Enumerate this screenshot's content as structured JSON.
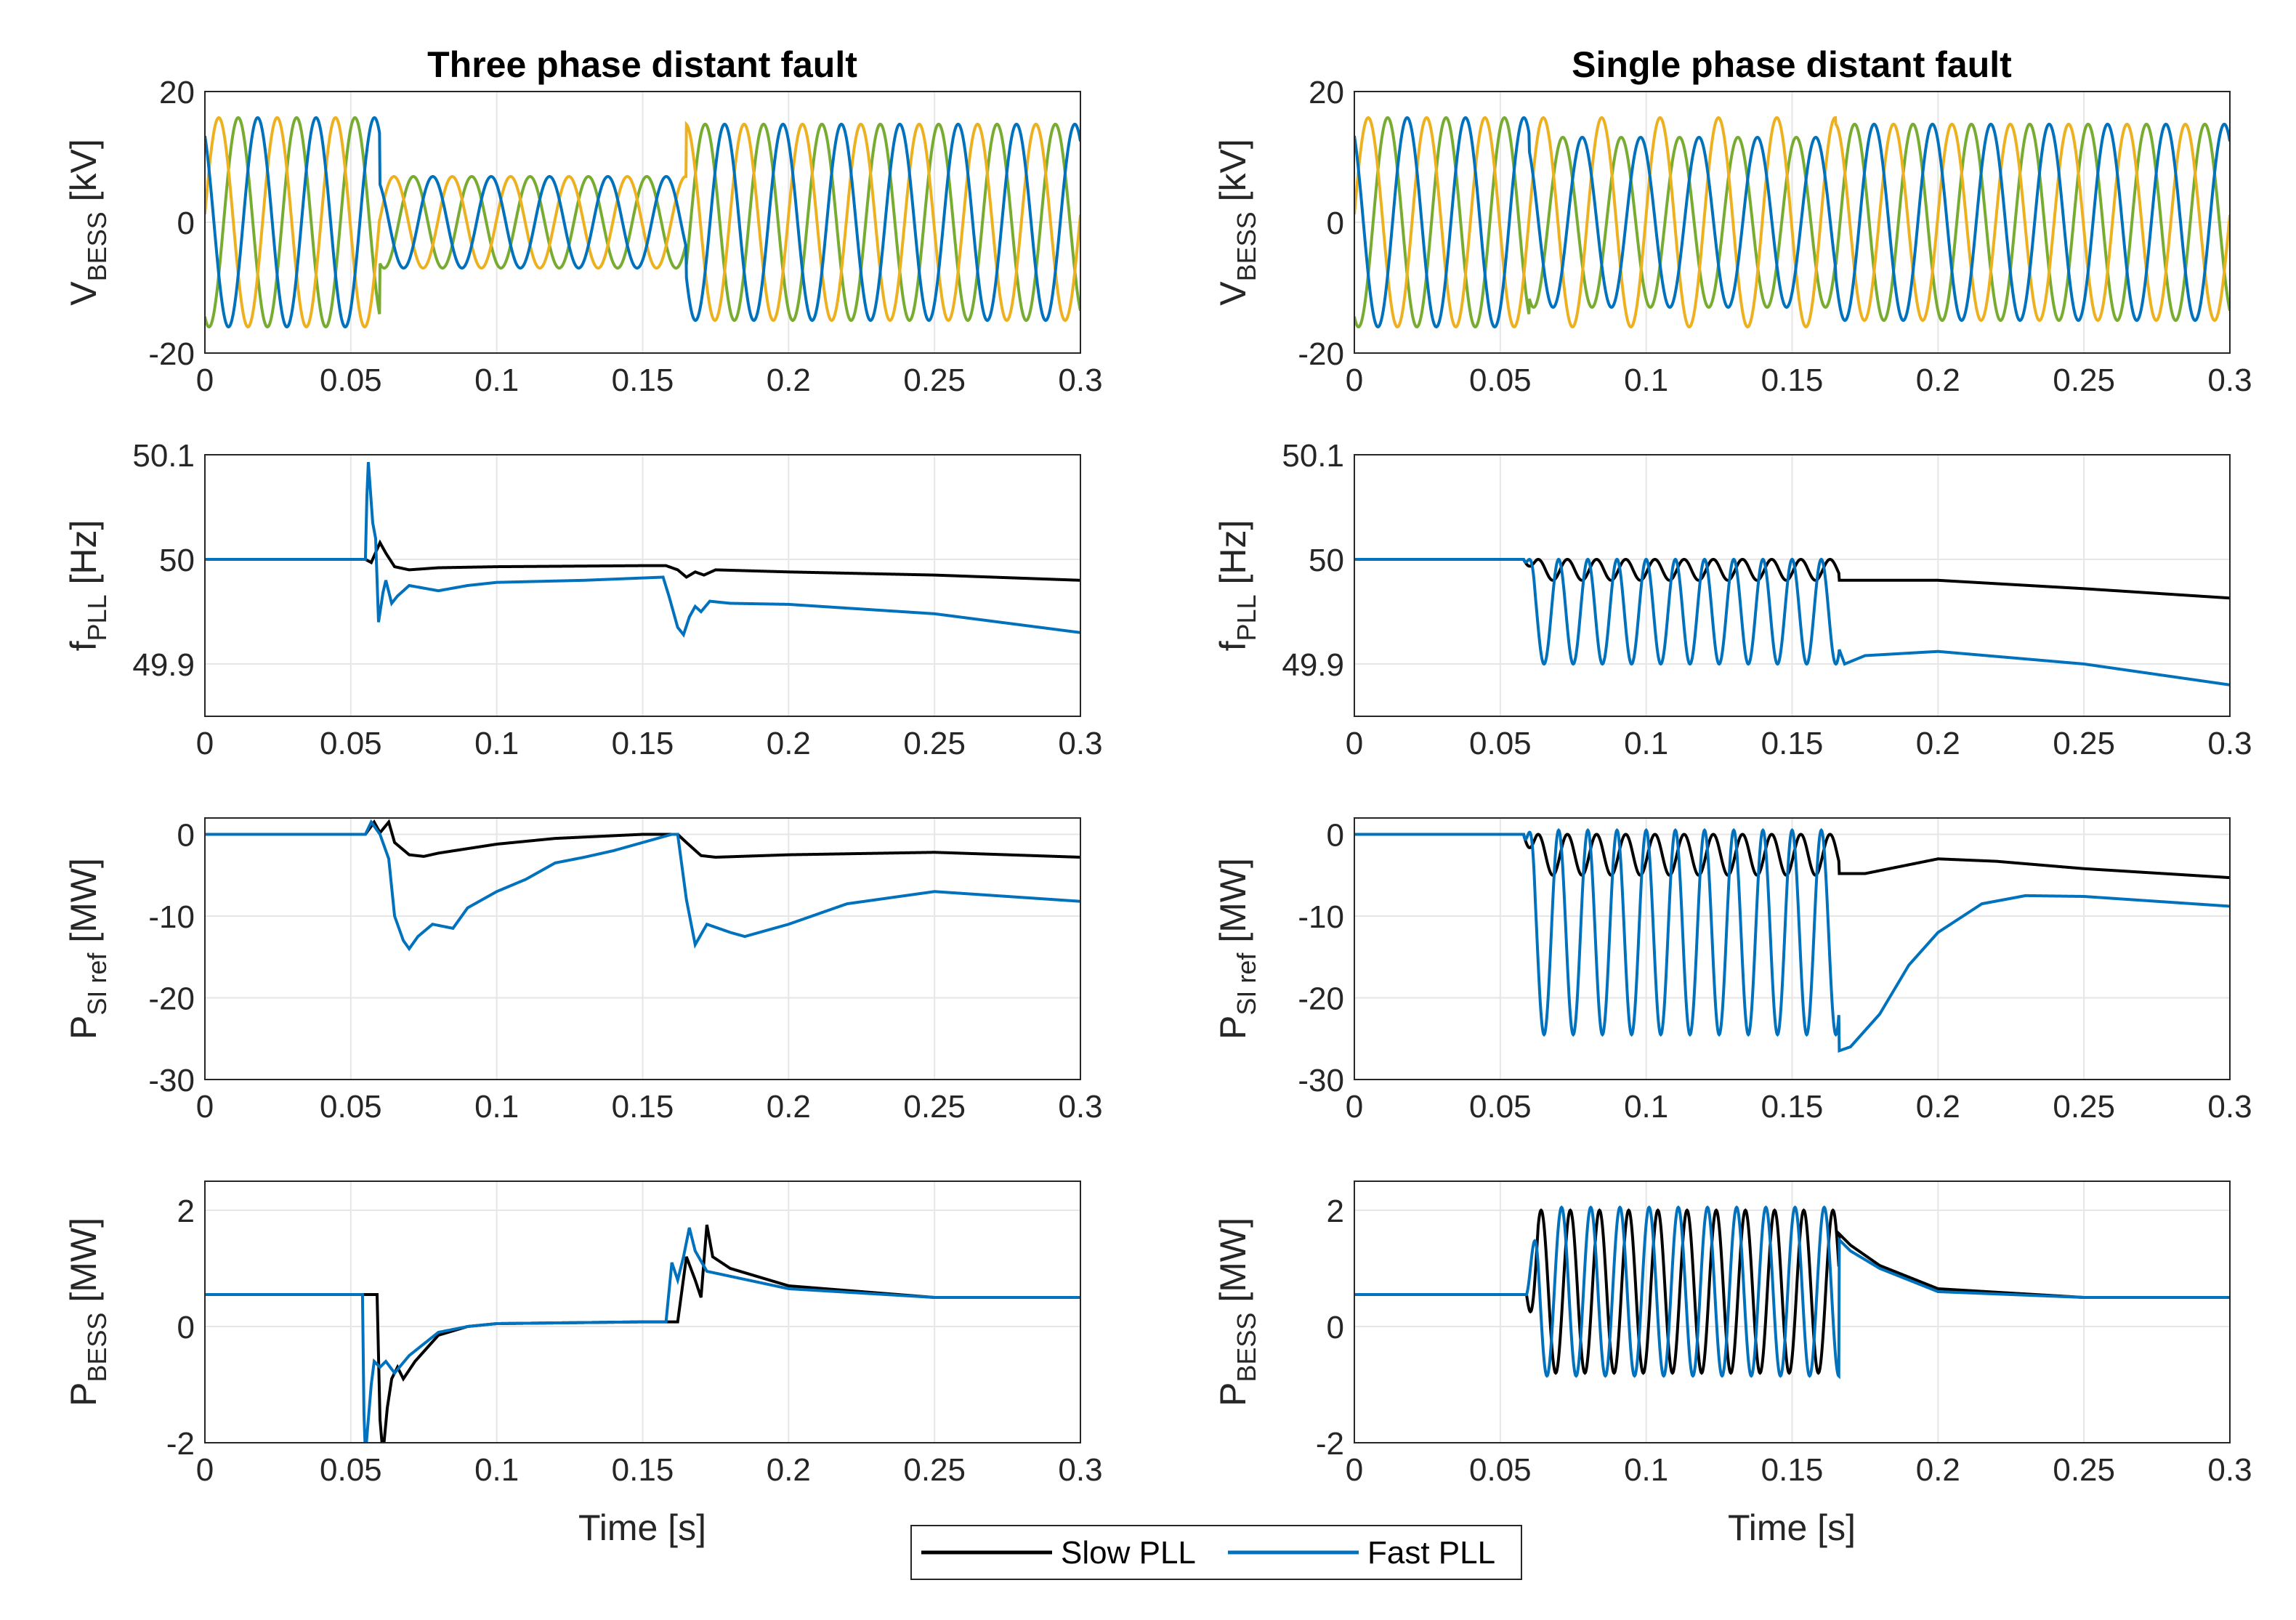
{
  "chart_data": {
    "type": "line",
    "time_label": "Time [s]",
    "x_ticks": [
      "0",
      "0.05",
      "0.1",
      "0.15",
      "0.2",
      "0.25",
      "0.3"
    ],
    "xlim": [
      0,
      0.3
    ],
    "grid": true,
    "columns": [
      {
        "title": "Three phase distant fault",
        "fault": "three",
        "show_xlabel": true
      },
      {
        "title": "Single phase distant fault",
        "fault": "single",
        "show_xlabel": true
      }
    ],
    "rows": [
      {
        "id": "vbess",
        "ylabel": "V",
        "ylabel_sub": "BESS",
        "ylabel_unit": " [kV]",
        "ylim": [
          -20,
          20
        ],
        "yticks": [
          "-20",
          "0",
          "20"
        ],
        "ytick_values": [
          -20,
          0,
          20
        ]
      },
      {
        "id": "fpll",
        "ylabel": "f",
        "ylabel_sub": "PLL",
        "ylabel_unit": " [Hz]",
        "ylim": [
          49.85,
          50.1
        ],
        "yticks": [
          "49.9",
          "50",
          "50.1"
        ],
        "ytick_values": [
          49.9,
          50,
          50.1
        ]
      },
      {
        "id": "psi",
        "ylabel": "P",
        "ylabel_sub": "SI ref",
        "ylabel_unit": " [MW]",
        "ylim": [
          -30,
          2
        ],
        "yticks": [
          "-30",
          "-20",
          "-10",
          "0"
        ],
        "ytick_values": [
          -30,
          -20,
          -10,
          0
        ]
      },
      {
        "id": "pbess",
        "ylabel": "P",
        "ylabel_sub": "BESS",
        "ylabel_unit": " [MW]",
        "ylim": [
          -2,
          2.5
        ],
        "yticks": [
          "-2",
          "0",
          "2"
        ],
        "ytick_values": [
          -2,
          0,
          2
        ]
      }
    ],
    "series": [
      {
        "name": "Slow PLL",
        "color": "#000000"
      },
      {
        "name": "Fast PLL",
        "color": "#0072BD"
      }
    ],
    "phase_colors": [
      "#0072BD",
      "#EDB120",
      "#77AC30"
    ],
    "voltage": {
      "frequency_hz": 50,
      "three_phase_fault": {
        "pre_amplitude_kv": 16,
        "fault_amplitude_kv": 7,
        "post_amplitude_kv": 15,
        "fault_start_s": 0.06,
        "fault_end_s": 0.165
      },
      "single_phase_fault": {
        "pre_amplitude_kv": 16,
        "fault_amplitudes_kv": [
          13,
          16,
          13
        ],
        "post_amplitude_kv": 15,
        "fault_start_s": 0.06,
        "fault_end_s": 0.165
      }
    },
    "frequency": {
      "three": {
        "slow": [
          [
            0,
            50
          ],
          [
            0.055,
            50
          ],
          [
            0.057,
            49.997
          ],
          [
            0.06,
            50.016
          ],
          [
            0.062,
            50.006
          ],
          [
            0.065,
            49.993
          ],
          [
            0.07,
            49.99
          ],
          [
            0.08,
            49.992
          ],
          [
            0.1,
            49.993
          ],
          [
            0.15,
            49.994
          ],
          [
            0.158,
            49.994
          ],
          [
            0.162,
            49.99
          ],
          [
            0.165,
            49.983
          ],
          [
            0.168,
            49.988
          ],
          [
            0.171,
            49.985
          ],
          [
            0.175,
            49.99
          ],
          [
            0.2,
            49.988
          ],
          [
            0.25,
            49.985
          ],
          [
            0.3,
            49.98
          ]
        ],
        "fast": [
          [
            0,
            50
          ],
          [
            0.055,
            50
          ],
          [
            0.0555,
            50.06
          ],
          [
            0.056,
            50.093
          ],
          [
            0.0575,
            50.035
          ],
          [
            0.0585,
            50.02
          ],
          [
            0.0595,
            49.94
          ],
          [
            0.061,
            49.968
          ],
          [
            0.062,
            49.98
          ],
          [
            0.064,
            49.958
          ],
          [
            0.066,
            49.965
          ],
          [
            0.07,
            49.975
          ],
          [
            0.08,
            49.97
          ],
          [
            0.09,
            49.975
          ],
          [
            0.1,
            49.978
          ],
          [
            0.13,
            49.98
          ],
          [
            0.157,
            49.983
          ],
          [
            0.159,
            49.965
          ],
          [
            0.162,
            49.935
          ],
          [
            0.164,
            49.928
          ],
          [
            0.166,
            49.945
          ],
          [
            0.168,
            49.955
          ],
          [
            0.17,
            49.95
          ],
          [
            0.173,
            49.96
          ],
          [
            0.18,
            49.958
          ],
          [
            0.2,
            49.957
          ],
          [
            0.25,
            49.948
          ],
          [
            0.3,
            49.93
          ]
        ]
      },
      "single": {
        "slow_center": 49.99,
        "slow_amp": 0.01,
        "fast_center": 49.95,
        "fast_amp": 0.05,
        "osc_start": 0.058,
        "osc_end": 0.166,
        "slow_post": [
          [
            0.166,
            49.98
          ],
          [
            0.2,
            49.98
          ],
          [
            0.25,
            49.972
          ],
          [
            0.3,
            49.963
          ]
        ],
        "fast_post": [
          [
            0.166,
            49.915
          ],
          [
            0.168,
            49.9
          ],
          [
            0.175,
            49.908
          ],
          [
            0.2,
            49.912
          ],
          [
            0.25,
            49.9
          ],
          [
            0.3,
            49.88
          ]
        ]
      }
    },
    "psi_ref": {
      "three": {
        "slow": [
          [
            0,
            0
          ],
          [
            0.055,
            0
          ],
          [
            0.058,
            1.5
          ],
          [
            0.06,
            0.2
          ],
          [
            0.063,
            1.5
          ],
          [
            0.065,
            -1
          ],
          [
            0.07,
            -2.5
          ],
          [
            0.075,
            -2.7
          ],
          [
            0.08,
            -2.3
          ],
          [
            0.1,
            -1.2
          ],
          [
            0.12,
            -0.5
          ],
          [
            0.15,
            0
          ],
          [
            0.162,
            0
          ],
          [
            0.165,
            -1
          ],
          [
            0.17,
            -2.6
          ],
          [
            0.175,
            -2.8
          ],
          [
            0.2,
            -2.5
          ],
          [
            0.25,
            -2.2
          ],
          [
            0.3,
            -2.8
          ]
        ],
        "fast": [
          [
            0,
            0
          ],
          [
            0.055,
            0
          ],
          [
            0.057,
            1.5
          ],
          [
            0.06,
            0
          ],
          [
            0.063,
            -3
          ],
          [
            0.065,
            -10
          ],
          [
            0.068,
            -13
          ],
          [
            0.07,
            -14
          ],
          [
            0.073,
            -12.5
          ],
          [
            0.078,
            -11
          ],
          [
            0.085,
            -11.5
          ],
          [
            0.09,
            -9
          ],
          [
            0.1,
            -7
          ],
          [
            0.11,
            -5.5
          ],
          [
            0.12,
            -3.5
          ],
          [
            0.13,
            -2.8
          ],
          [
            0.14,
            -2
          ],
          [
            0.15,
            -1
          ],
          [
            0.16,
            0
          ],
          [
            0.162,
            0
          ],
          [
            0.165,
            -8
          ],
          [
            0.168,
            -13.5
          ],
          [
            0.172,
            -11
          ],
          [
            0.18,
            -12
          ],
          [
            0.185,
            -12.5
          ],
          [
            0.2,
            -11
          ],
          [
            0.22,
            -8.5
          ],
          [
            0.25,
            -7
          ],
          [
            0.3,
            -8.2
          ]
        ]
      },
      "single": {
        "slow_center": -2.5,
        "slow_amp": 2.5,
        "fast_center": -12,
        "fast_amp": 12.5,
        "osc_start": 0.058,
        "osc_end": 0.166,
        "slow_post": [
          [
            0.166,
            -4.8
          ],
          [
            0.175,
            -4.8
          ],
          [
            0.2,
            -3
          ],
          [
            0.22,
            -3.3
          ],
          [
            0.25,
            -4.2
          ],
          [
            0.3,
            -5.3
          ]
        ],
        "fast_post": [
          [
            0.166,
            -26.5
          ],
          [
            0.17,
            -26
          ],
          [
            0.18,
            -22
          ],
          [
            0.19,
            -16
          ],
          [
            0.2,
            -12
          ],
          [
            0.215,
            -8.5
          ],
          [
            0.23,
            -7.5
          ],
          [
            0.25,
            -7.6
          ],
          [
            0.3,
            -8.8
          ]
        ]
      }
    },
    "p_bess": {
      "three": {
        "slow": [
          [
            0,
            0.55
          ],
          [
            0.059,
            0.55
          ],
          [
            0.06,
            -1.6
          ],
          [
            0.061,
            -2.2
          ],
          [
            0.0625,
            -1.4
          ],
          [
            0.064,
            -0.9
          ],
          [
            0.066,
            -0.7
          ],
          [
            0.068,
            -0.9
          ],
          [
            0.072,
            -0.6
          ],
          [
            0.08,
            -0.15
          ],
          [
            0.09,
            0
          ],
          [
            0.1,
            0.05
          ],
          [
            0.15,
            0.08
          ],
          [
            0.162,
            0.08
          ],
          [
            0.165,
            1.2
          ],
          [
            0.168,
            0.8
          ],
          [
            0.17,
            0.5
          ],
          [
            0.172,
            1.75
          ],
          [
            0.174,
            1.2
          ],
          [
            0.18,
            1
          ],
          [
            0.2,
            0.7
          ],
          [
            0.25,
            0.5
          ],
          [
            0.3,
            0.5
          ]
        ],
        "fast": [
          [
            0,
            0.55
          ],
          [
            0.054,
            0.55
          ],
          [
            0.0545,
            -1.5
          ],
          [
            0.055,
            -2.2
          ],
          [
            0.057,
            -1
          ],
          [
            0.058,
            -0.6
          ],
          [
            0.06,
            -0.7
          ],
          [
            0.062,
            -0.6
          ],
          [
            0.065,
            -0.8
          ],
          [
            0.07,
            -0.5
          ],
          [
            0.08,
            -0.1
          ],
          [
            0.09,
            0
          ],
          [
            0.1,
            0.05
          ],
          [
            0.15,
            0.08
          ],
          [
            0.158,
            0.08
          ],
          [
            0.16,
            1.1
          ],
          [
            0.162,
            0.8
          ],
          [
            0.164,
            1.2
          ],
          [
            0.166,
            1.7
          ],
          [
            0.168,
            1.3
          ],
          [
            0.172,
            0.95
          ],
          [
            0.2,
            0.65
          ],
          [
            0.25,
            0.5
          ],
          [
            0.3,
            0.5
          ]
        ]
      },
      "single": {
        "slow_center": 0.6,
        "slow_amp": 1.4,
        "fast_center": 0.6,
        "fast_amp": 1.45,
        "osc_start": 0.059,
        "osc_end": 0.166,
        "slow_post": [
          [
            0.166,
            1.6
          ],
          [
            0.17,
            1.4
          ],
          [
            0.18,
            1.05
          ],
          [
            0.2,
            0.65
          ],
          [
            0.25,
            0.5
          ],
          [
            0.3,
            0.5
          ]
        ],
        "fast_post": [
          [
            0.166,
            1.5
          ],
          [
            0.17,
            1.3
          ],
          [
            0.18,
            1
          ],
          [
            0.2,
            0.6
          ],
          [
            0.25,
            0.5
          ],
          [
            0.3,
            0.5
          ]
        ]
      }
    }
  },
  "legend": {
    "slow_label": "Slow PLL",
    "fast_label": "Fast PLL"
  }
}
